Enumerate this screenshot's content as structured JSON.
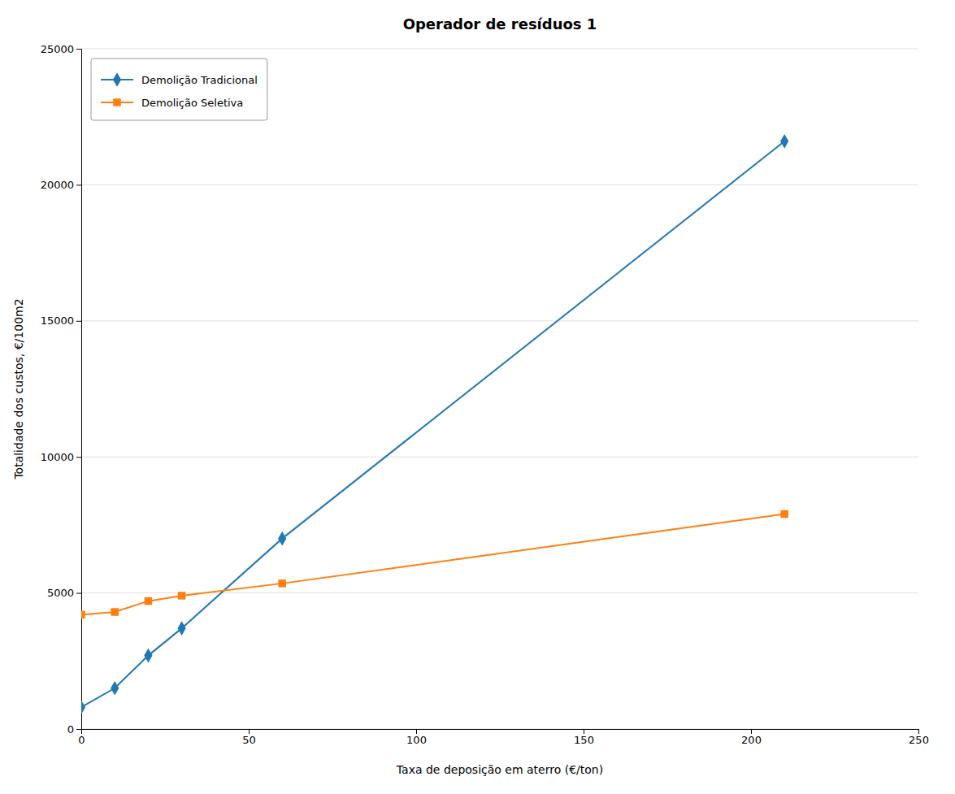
{
  "chart_data": {
    "type": "line",
    "title": "Operador de resíduos 1",
    "x_label": "Taxa de deposição em aterro (€/ton)",
    "y_label": "Totalidade dos custos, €/100m2",
    "x": [
      0,
      10,
      20,
      30,
      60,
      210
    ],
    "series": [
      {
        "name": "Demolição Tradicional",
        "marker": "diamond",
        "values": [
          800,
          1500,
          2700,
          3700,
          7000,
          21600
        ]
      },
      {
        "name": "Demolição Seletiva",
        "marker": "square",
        "values": [
          4200,
          4300,
          4700,
          4900,
          5350,
          7900
        ]
      }
    ],
    "xlim": [
      0,
      250
    ],
    "ylim": [
      0,
      25000
    ],
    "xticks": [
      0,
      50,
      100,
      150,
      200,
      250
    ],
    "yticks": [
      0,
      5000,
      10000,
      15000,
      20000,
      25000
    ],
    "grid": true,
    "legend": "upper left"
  }
}
